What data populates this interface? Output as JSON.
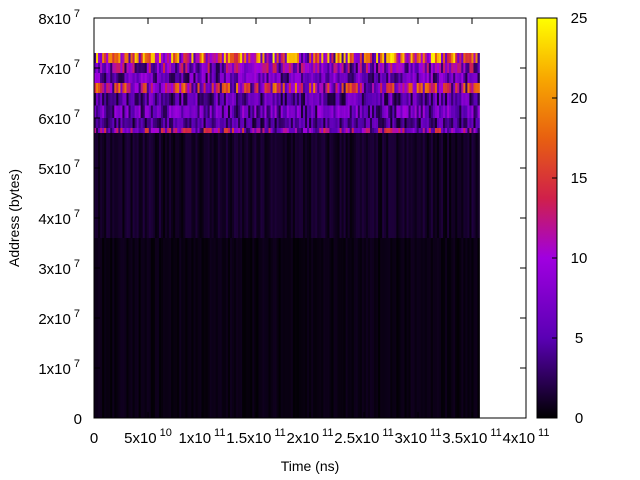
{
  "chart_data": {
    "type": "heatmap",
    "xlabel": "Time (ns)",
    "ylabel": "Address (bytes)",
    "xlim": [
      0,
      400000000000
    ],
    "ylim": [
      0,
      80000000
    ],
    "x_ticks": [
      {
        "value": 0,
        "mantissa": "0",
        "exponent": ""
      },
      {
        "value": 50000000000,
        "mantissa": "5x10",
        "exponent": "10"
      },
      {
        "value": 100000000000,
        "mantissa": "1x10",
        "exponent": "11"
      },
      {
        "value": 150000000000,
        "mantissa": "1.5x10",
        "exponent": "11"
      },
      {
        "value": 200000000000,
        "mantissa": "2x10",
        "exponent": "11"
      },
      {
        "value": 250000000000,
        "mantissa": "2.5x10",
        "exponent": "11"
      },
      {
        "value": 300000000000,
        "mantissa": "3x10",
        "exponent": "11"
      },
      {
        "value": 350000000000,
        "mantissa": "3.5x10",
        "exponent": "11"
      },
      {
        "value": 400000000000,
        "mantissa": "4x10",
        "exponent": "11"
      }
    ],
    "y_ticks": [
      {
        "value": 0,
        "mantissa": "0",
        "exponent": ""
      },
      {
        "value": 10000000,
        "mantissa": "1x10",
        "exponent": "7"
      },
      {
        "value": 20000000,
        "mantissa": "2x10",
        "exponent": "7"
      },
      {
        "value": 30000000,
        "mantissa": "3x10",
        "exponent": "7"
      },
      {
        "value": 40000000,
        "mantissa": "4x10",
        "exponent": "7"
      },
      {
        "value": 50000000,
        "mantissa": "5x10",
        "exponent": "7"
      },
      {
        "value": 60000000,
        "mantissa": "6x10",
        "exponent": "7"
      },
      {
        "value": 70000000,
        "mantissa": "7x10",
        "exponent": "7"
      },
      {
        "value": 80000000,
        "mantissa": "8x10",
        "exponent": "7"
      }
    ],
    "data_extent": {
      "x_range": [
        0,
        357000000000
      ],
      "y_range": [
        0,
        73000000
      ]
    },
    "intensity_bands": [
      {
        "y_range": [
          71000000,
          73000000
        ],
        "level": 14
      },
      {
        "y_range": [
          69000000,
          71000000
        ],
        "level": 8
      },
      {
        "y_range": [
          67000000,
          69000000
        ],
        "level": 6
      },
      {
        "y_range": [
          65000000,
          67000000
        ],
        "level": 11
      },
      {
        "y_range": [
          62500000,
          65000000
        ],
        "level": 5
      },
      {
        "y_range": [
          60000000,
          62500000
        ],
        "level": 6
      },
      {
        "y_range": [
          58000000,
          60000000
        ],
        "level": 4
      },
      {
        "y_range": [
          57000000,
          58000000
        ],
        "level": 9
      },
      {
        "y_range": [
          36000000,
          57000000
        ],
        "level": 1
      },
      {
        "y_range": [
          0,
          36000000
        ],
        "level": 0.5
      }
    ],
    "colorbar": {
      "range": [
        0,
        25
      ],
      "ticks": [
        0,
        5,
        10,
        15,
        20,
        25
      ],
      "palette": "gnuplot (black-purple-red-orange-yellow)"
    },
    "grid": false,
    "legend": "none"
  }
}
